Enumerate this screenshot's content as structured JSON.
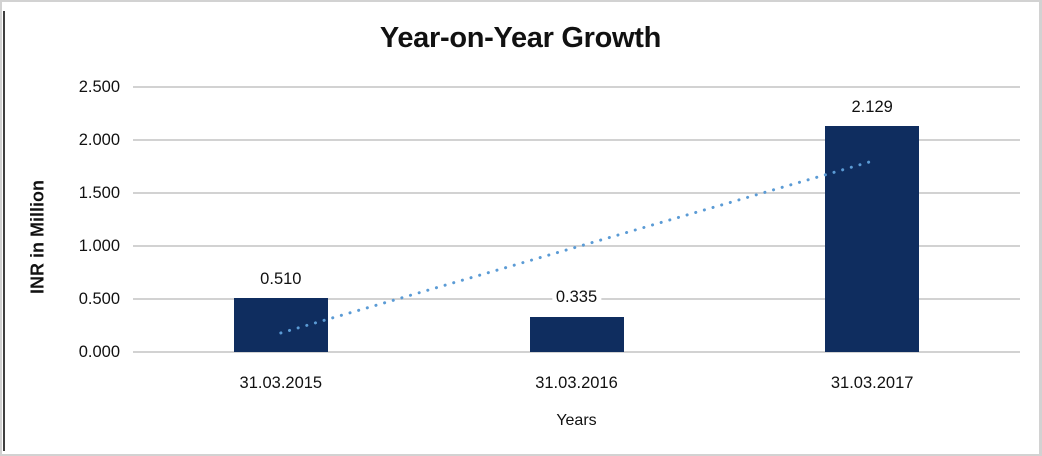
{
  "chart_data": {
    "type": "bar",
    "title": "Year-on-Year Growth",
    "xlabel": "Years",
    "ylabel": "INR in Million",
    "categories": [
      "31.03.2015",
      "31.03.2016",
      "31.03.2017"
    ],
    "values": [
      0.51,
      0.335,
      2.129
    ],
    "value_labels": [
      "0.510",
      "0.335",
      "2.129"
    ],
    "ylim": [
      0,
      2.5
    ],
    "ytick_step": 0.5,
    "ytick_labels": [
      "0.000",
      "0.500",
      "1.000",
      "1.500",
      "2.000",
      "2.500"
    ],
    "grid": "horizontal",
    "legend": "none",
    "colors": {
      "bar": "#0f2d5f",
      "gridline": "#d2d2d2",
      "trendline": "#5b9bd5"
    },
    "trendline": {
      "type": "linear",
      "style": "dotted",
      "start": {
        "category_index": 0,
        "value": 0.18
      },
      "end": {
        "category_index": 2,
        "value": 1.8
      }
    }
  }
}
